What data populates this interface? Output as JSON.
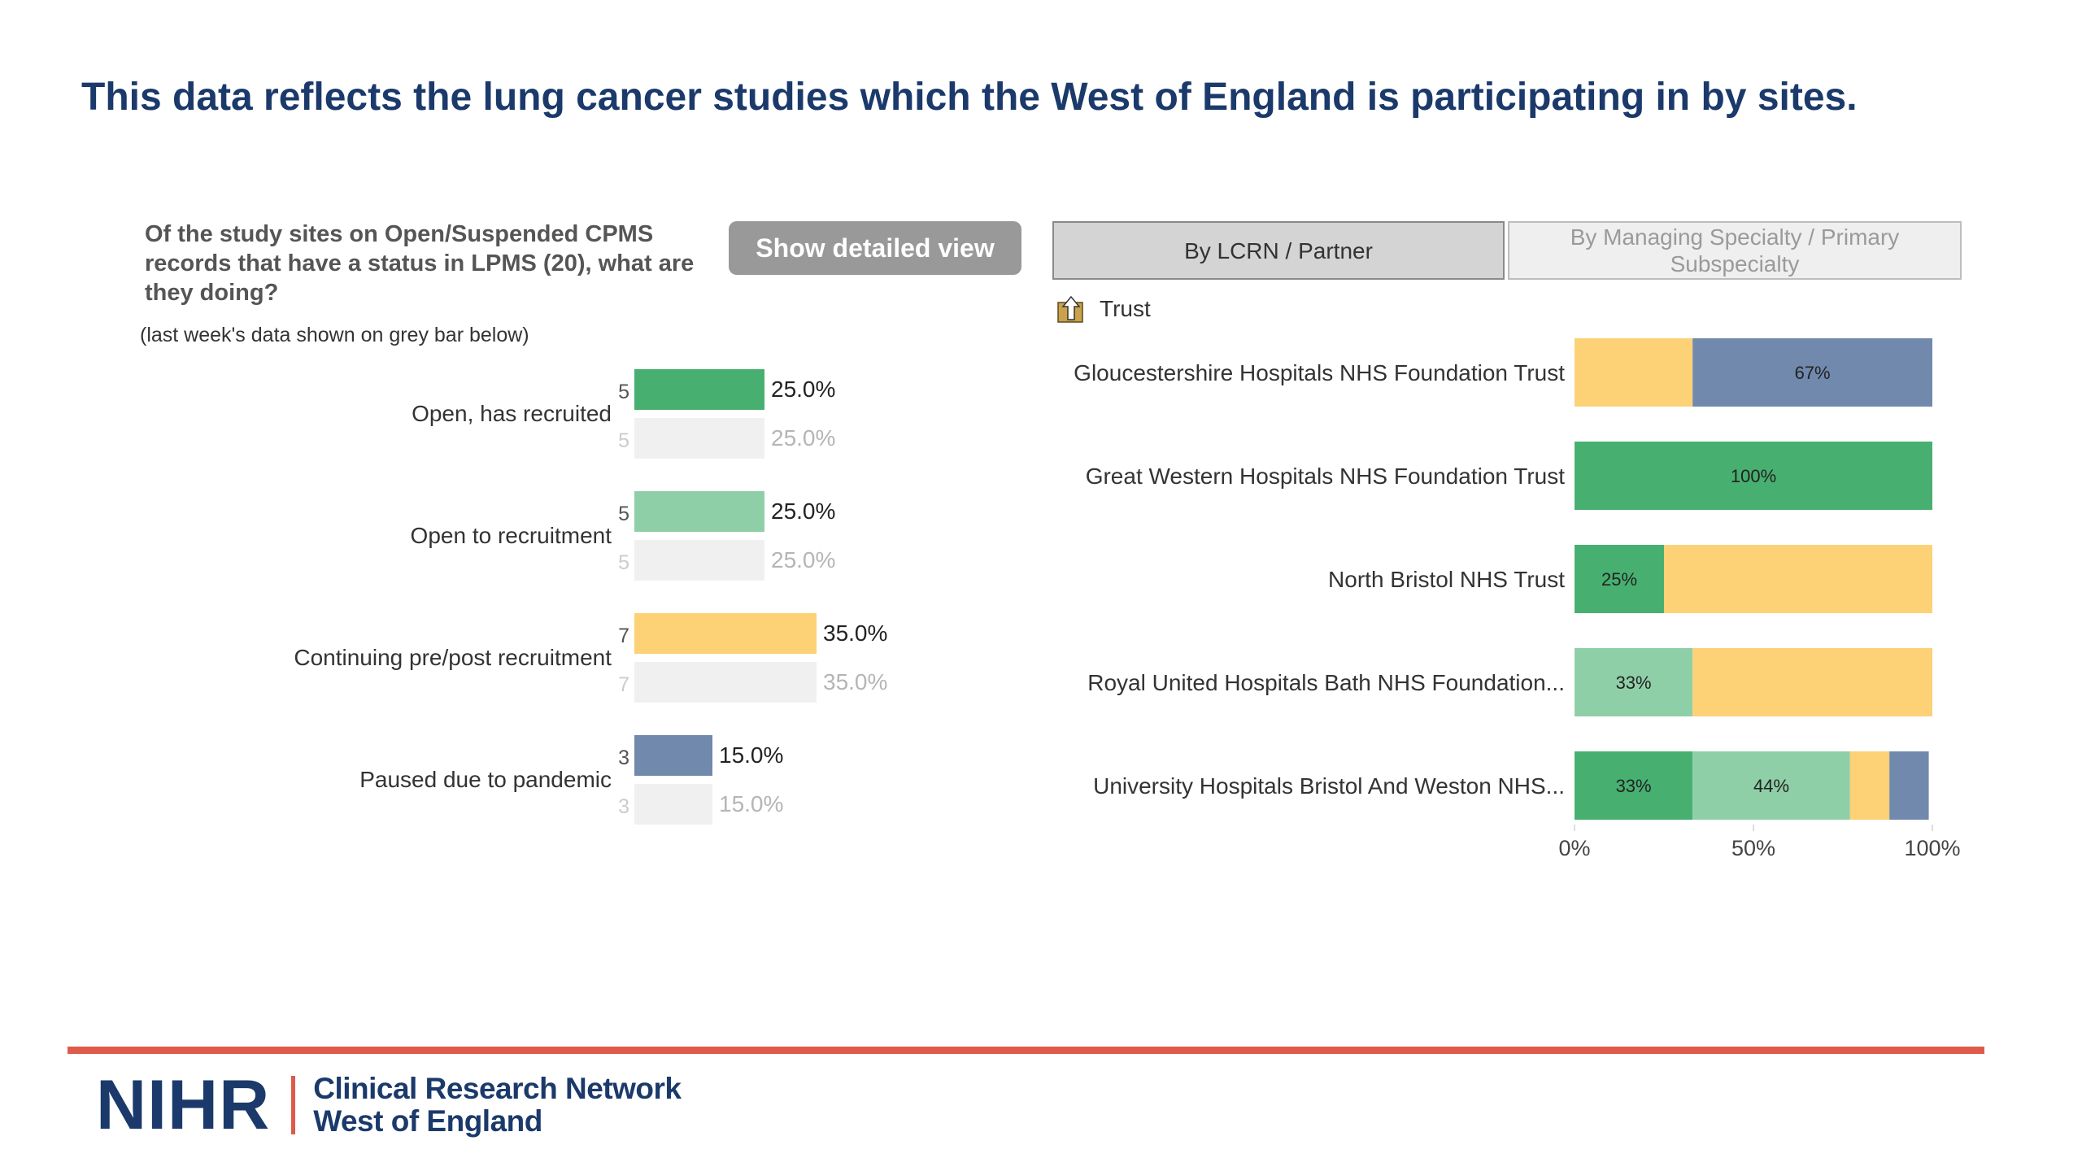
{
  "page": {
    "title": "This data reflects the lung cancer studies which the West of England is participating in by sites.",
    "question": "Of the study sites on Open/Suspended CPMS records that have a status in LPMS (20), what are they doing?",
    "note": "(last week's data shown on grey bar below)",
    "detail_button": "Show detailed view",
    "tabs": [
      "By LCRN / Partner",
      "By Managing Specialty / Primary Subspecialty"
    ],
    "trust_header": "Trust",
    "footer": {
      "logo_main": "NIHR",
      "logo_line1": "Clinical Research Network",
      "logo_line2": "West of England"
    }
  },
  "chart_data": [
    {
      "type": "bar",
      "orientation": "horizontal",
      "categories": [
        "Open, has recruited",
        "Open to recruitment",
        "Continuing pre/post recruitment",
        "Paused due to pandemic"
      ],
      "series": [
        {
          "name": "",
          "counts": [
            5,
            5,
            7,
            3
          ],
          "values": [
            25.0,
            25.0,
            35.0,
            15.0
          ],
          "value_labels": [
            "25.0%",
            "25.0%",
            "35.0%",
            "15.0%"
          ],
          "colors": [
            "#47b070",
            "#8fcfa8",
            "#fdd176",
            "#7089ad"
          ]
        },
        {
          "name": "",
          "counts": [
            5,
            5,
            7,
            3
          ],
          "values": [
            25.0,
            25.0,
            35.0,
            15.0
          ],
          "value_labels": [
            "25.0%",
            "25.0%",
            "35.0%",
            "15.0%"
          ],
          "color": "#f0f0f0"
        }
      ]
    },
    {
      "type": "bar",
      "orientation": "horizontal",
      "stacked": true,
      "categories": [
        "Gloucestershire Hospitals NHS Foundation Trust",
        "Great Western Hospitals NHS Foundation Trust",
        "North Bristol NHS Trust",
        "Royal United Hospitals Bath NHS Foundation...",
        "University Hospitals Bristol And Weston NHS..."
      ],
      "segments": [
        [
          {
            "value": 33,
            "color": "#fdd176",
            "label": ""
          },
          {
            "value": 67,
            "color": "#7089ad",
            "label": "67%"
          }
        ],
        [
          {
            "value": 100,
            "color": "#47b070",
            "label": "100%"
          }
        ],
        [
          {
            "value": 25,
            "color": "#47b070",
            "label": "25%"
          },
          {
            "value": 75,
            "color": "#fdd176",
            "label": ""
          }
        ],
        [
          {
            "value": 33,
            "color": "#8fcfa8",
            "label": "33%"
          },
          {
            "value": 67,
            "color": "#fdd176",
            "label": ""
          }
        ],
        [
          {
            "value": 33,
            "color": "#47b070",
            "label": "33%"
          },
          {
            "value": 44,
            "color": "#8fcfa8",
            "label": "44%"
          },
          {
            "value": 11,
            "color": "#fdd176",
            "label": ""
          },
          {
            "value": 11,
            "color": "#7089ad",
            "label": ""
          }
        ]
      ],
      "xlim": [
        0,
        100
      ],
      "xticks": [
        "0%",
        "50%",
        "100%"
      ]
    }
  ]
}
